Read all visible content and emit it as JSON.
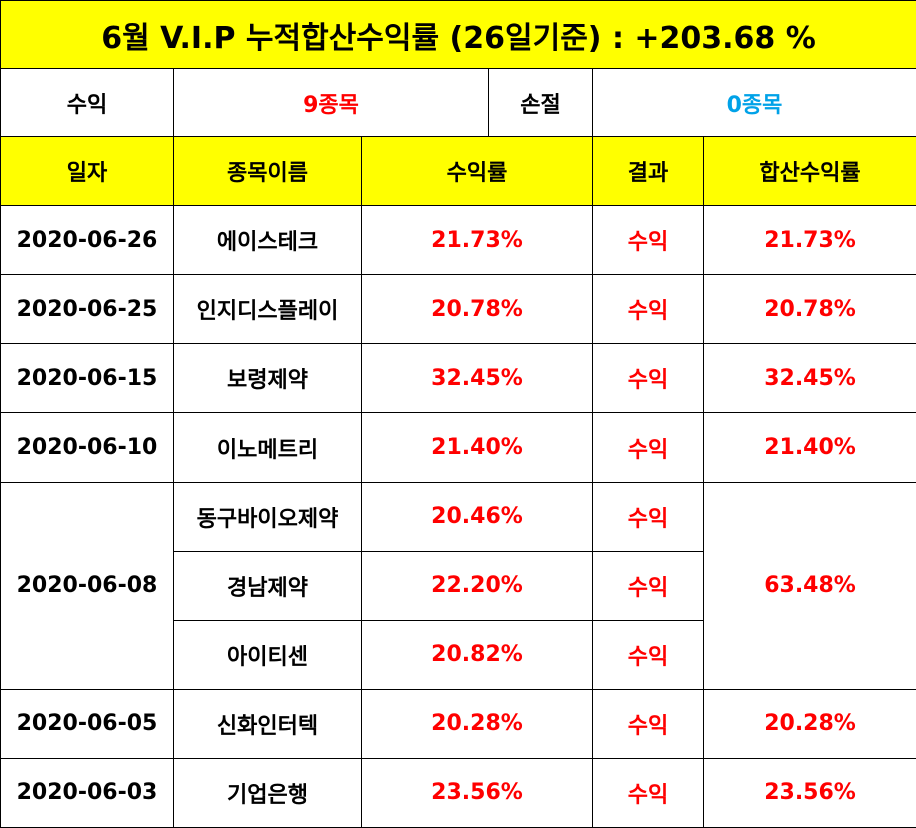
{
  "title": "6월 V.I.P 누적합산수익률 (26일기준) : +203.68 %",
  "summary": {
    "profit_label": "수익",
    "profit_value": "9종목",
    "loss_label": "손절",
    "loss_value": "0종목"
  },
  "headers": {
    "date": "일자",
    "name": "종목이름",
    "rate": "수익률",
    "result": "결과",
    "combined": "합산수익률"
  },
  "rows": [
    {
      "date": "2020-06-26",
      "name": "에이스테크",
      "rate": "21.73%",
      "result": "수익",
      "combined": "21.73%"
    },
    {
      "date": "2020-06-25",
      "name": "인지디스플레이",
      "rate": "20.78%",
      "result": "수익",
      "combined": "20.78%"
    },
    {
      "date": "2020-06-15",
      "name": "보령제약",
      "rate": "32.45%",
      "result": "수익",
      "combined": "32.45%"
    },
    {
      "date": "2020-06-10",
      "name": "이노메트리",
      "rate": "21.40%",
      "result": "수익",
      "combined": "21.40%"
    },
    {
      "date": "2020-06-08",
      "name": "동구바이오제약",
      "rate": "20.46%",
      "result": "수익",
      "combined": "63.48%"
    },
    {
      "name": "경남제약",
      "rate": "22.20%",
      "result": "수익"
    },
    {
      "name": "아이티센",
      "rate": "20.82%",
      "result": "수익"
    },
    {
      "date": "2020-06-05",
      "name": "신화인터텍",
      "rate": "20.28%",
      "result": "수익",
      "combined": "20.28%"
    },
    {
      "date": "2020-06-03",
      "name": "기업은행",
      "rate": "23.56%",
      "result": "수익",
      "combined": "23.56%"
    }
  ],
  "colors": {
    "header_bg": "#ffff00",
    "profit_red": "#ff0000",
    "loss_blue": "#00a2e8"
  }
}
